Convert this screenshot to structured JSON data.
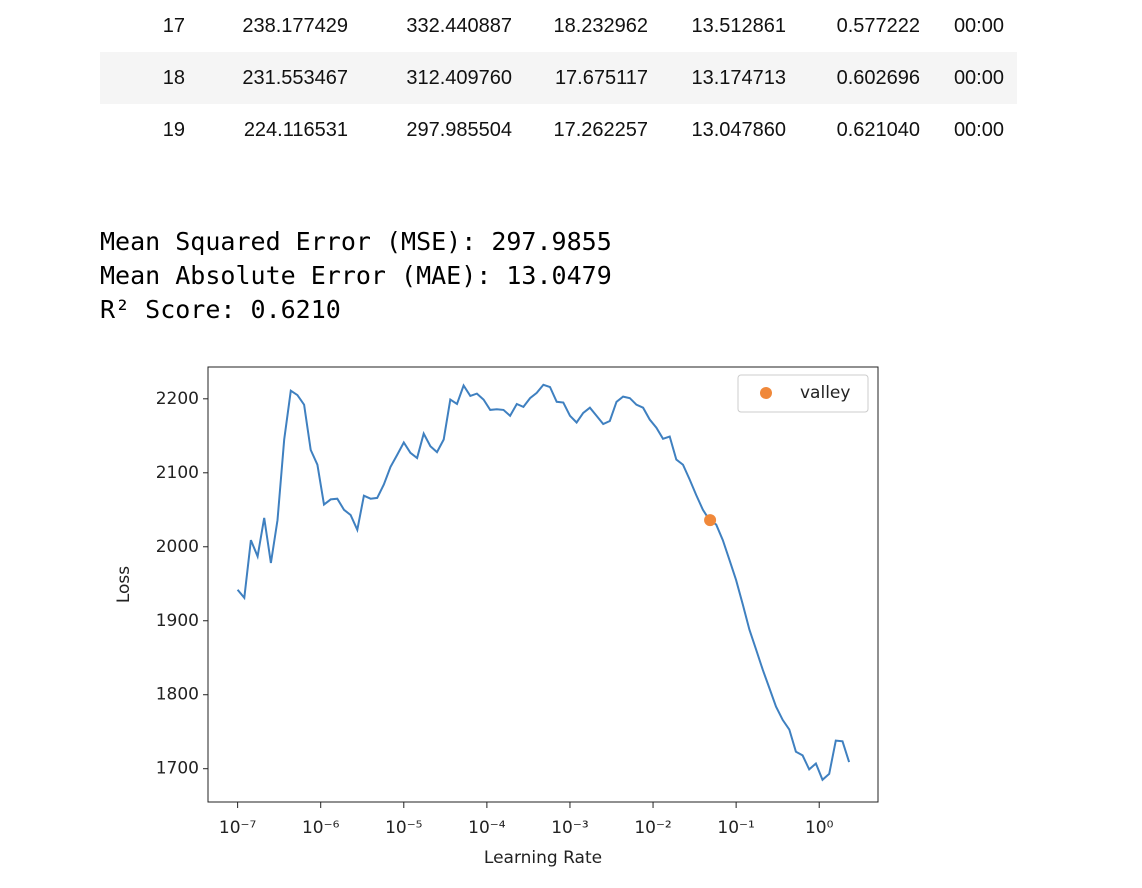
{
  "table": {
    "rows": [
      [
        "17",
        "238.177429",
        "332.440887",
        "18.232962",
        "13.512861",
        "0.577222",
        "00:00"
      ],
      [
        "18",
        "231.553467",
        "312.409760",
        "17.675117",
        "13.174713",
        "0.602696",
        "00:00"
      ],
      [
        "19",
        "224.116531",
        "297.985504",
        "17.262257",
        "13.047860",
        "0.621040",
        "00:00"
      ]
    ]
  },
  "output_lines": [
    "Mean Squared Error (MSE): 297.9855",
    "Mean Absolute Error (MAE): 13.0479",
    "R² Score: 0.6210"
  ],
  "chart_data": {
    "type": "line",
    "xlabel": "Learning Rate",
    "ylabel": "Loss",
    "xscale": "log",
    "legend": "upper right",
    "xlim": [
      4.4e-08,
      5.1
    ],
    "ylim": [
      1655,
      2243
    ],
    "xticks": [
      {
        "value": 1e-07,
        "label": "10⁻⁷"
      },
      {
        "value": 1e-06,
        "label": "10⁻⁶"
      },
      {
        "value": 1e-05,
        "label": "10⁻⁵"
      },
      {
        "value": 0.0001,
        "label": "10⁻⁴"
      },
      {
        "value": 0.001,
        "label": "10⁻³"
      },
      {
        "value": 0.01,
        "label": "10⁻²"
      },
      {
        "value": 0.1,
        "label": "10⁻¹"
      },
      {
        "value": 1,
        "label": "10⁰"
      }
    ],
    "yticks": [
      1700,
      1800,
      1900,
      2000,
      2100,
      2200
    ],
    "x": [
      1e-07,
      1.202e-07,
      1.445e-07,
      1.738e-07,
      2.089e-07,
      2.512e-07,
      3.02e-07,
      3.631e-07,
      4.365e-07,
      5.248e-07,
      6.31e-07,
      7.586e-07,
      9.12e-07,
      1.096e-06,
      1.318e-06,
      1.585e-06,
      1.905e-06,
      2.291e-06,
      2.754e-06,
      3.311e-06,
      3.981e-06,
      4.786e-06,
      5.754e-06,
      6.918e-06,
      8.318e-06,
      1e-05,
      1.202e-05,
      1.445e-05,
      1.738e-05,
      2.089e-05,
      2.512e-05,
      3.02e-05,
      3.631e-05,
      4.365e-05,
      5.248e-05,
      6.31e-05,
      7.586e-05,
      9.12e-05,
      0.0001096,
      0.0001318,
      0.0001585,
      0.0001905,
      0.0002291,
      0.0002754,
      0.0003311,
      0.0003981,
      0.0004786,
      0.0005754,
      0.0006918,
      0.0008318,
      0.001,
      0.001202,
      0.001445,
      0.001738,
      0.002089,
      0.002512,
      0.00302,
      0.003631,
      0.004365,
      0.005248,
      0.00631,
      0.007586,
      0.00912,
      0.01096,
      0.01318,
      0.01585,
      0.01905,
      0.02291,
      0.02754,
      0.03311,
      0.03981,
      0.04786,
      0.05754,
      0.06918,
      0.08318,
      0.1,
      0.1202,
      0.1445,
      0.1738,
      0.2089,
      0.2512,
      0.302,
      0.3631,
      0.4365,
      0.5248,
      0.631,
      0.7586,
      0.912,
      1.096,
      1.318,
      1.585,
      1.905,
      2.291
    ],
    "series": [
      {
        "color": "#3f80c0",
        "values": [
          1942,
          1931,
          2009,
          1987,
          2039,
          1978,
          2036,
          2145,
          2211,
          2205,
          2192,
          2131,
          2111,
          2057,
          2064,
          2065,
          2050,
          2043,
          2023,
          2069,
          2065,
          2066,
          2084,
          2108,
          2124,
          2141,
          2127,
          2120,
          2153,
          2136,
          2128,
          2145,
          2199,
          2193,
          2218,
          2204,
          2207,
          2199,
          2185,
          2186,
          2185,
          2177,
          2193,
          2189,
          2201,
          2208,
          2219,
          2216,
          2196,
          2195,
          2177,
          2168,
          2181,
          2188,
          2177,
          2166,
          2170,
          2196,
          2203,
          2201,
          2192,
          2188,
          2172,
          2161,
          2146,
          2149,
          2118,
          2111,
          2091,
          2070,
          2050,
          2036,
          2030,
          2009,
          1982,
          1955,
          1922,
          1888,
          1861,
          1834,
          1809,
          1784,
          1766,
          1753,
          1723,
          1718,
          1699,
          1707,
          1685,
          1693,
          1738,
          1737,
          1709
        ]
      },
      {
        "name": "valley",
        "type": "scatter",
        "color": "#f0883a",
        "x": [
          0.0486
        ],
        "values": [
          2036
        ]
      }
    ]
  }
}
